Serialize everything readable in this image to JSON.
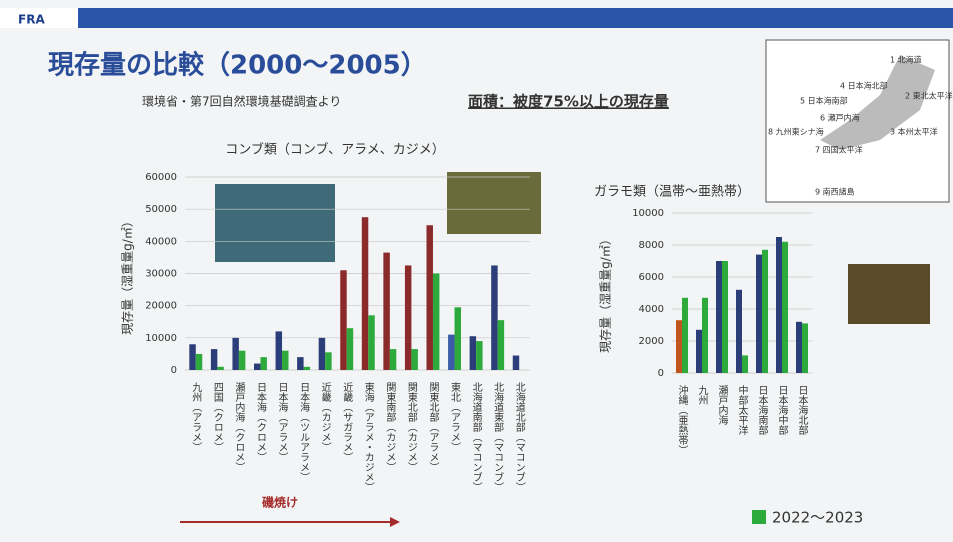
{
  "header": {
    "logo": "FRA"
  },
  "slide": {
    "title": "現存量の比較（2000〜2005）",
    "source": "環境省・第7回自然環境基礎調査より",
    "note": "面積：被度75%以上の現存量",
    "arrow_label": "磯焼け"
  },
  "map": {
    "labels": [
      "1 北海道",
      "2 東北太平洋",
      "3 本州太平洋",
      "4 日本海北部",
      "5 日本海南部",
      "6 瀬戸内海",
      "7 四国太平洋",
      "8 九州東シナ海",
      "9 南西諸島"
    ]
  },
  "chart_data": [
    {
      "type": "bar",
      "title": "コンブ類（コンブ、アラメ、カジメ）",
      "y_label": "現存量（湿重量g/㎡）",
      "categories": [
        "九州（アラメ）",
        "四国（クロメ）",
        "瀬戸内海（クロメ）",
        "日本海（クロメ）",
        "日本海（アラメ）",
        "日本海（ツルアラメ）",
        "近畿（カジメ）",
        "近畿（サガラメ）",
        "東海（アラメ・カジメ）",
        "関東南部（カジメ）",
        "関東北部（カジメ）",
        "関東北部（アラメ）",
        "東北（アラメ）",
        "北海道南部（マコンブ）",
        "北海道東部（マコンブ）",
        "北海道北部（マコンブ）"
      ],
      "series": [
        {
          "colors": [
            "#2c3e7a",
            "#2c3e7a",
            "#2c3e7a",
            "#2c3e7a",
            "#2c3e7a",
            "#2c3e7a",
            "#2c3e7a",
            "#8b2a2a",
            "#8b2a2a",
            "#8b2a2a",
            "#8b2a2a",
            "#8b2a2a",
            "#3a5ca8",
            "#2c3e7a",
            "#2c3e7a",
            "#2c3e7a"
          ],
          "values": [
            8000,
            6500,
            10000,
            2000,
            12000,
            4000,
            10000,
            31000,
            47500,
            36500,
            32500,
            45000,
            11000,
            10500,
            32500,
            4500
          ]
        },
        {
          "color": "#2eaa3c",
          "values": [
            5000,
            1000,
            6000,
            4000,
            6000,
            1000,
            5500,
            13000,
            17000,
            6500,
            6500,
            30000,
            19500,
            9000,
            15500,
            null
          ]
        }
      ],
      "ylim": [
        0,
        60000
      ],
      "yticks": [
        0,
        10000,
        20000,
        30000,
        40000,
        50000,
        60000
      ],
      "grid": true
    },
    {
      "type": "bar",
      "title": "ガラモ類（温帯〜亜熱帯）",
      "y_label": "現存量（湿重量g/㎡）",
      "categories": [
        "沖縄（亜熱帯）",
        "九州",
        "瀬戸内海",
        "中部太平洋",
        "日本海南部",
        "日本海中部",
        "日本海北部"
      ],
      "series": [
        {
          "colors": [
            "#c0561e",
            "#2c3e7a",
            "#2c3e7a",
            "#2c3e7a",
            "#2c3e7a",
            "#2c3e7a",
            "#2c3e7a"
          ],
          "values": [
            3300,
            2700,
            7000,
            5200,
            7400,
            8500,
            3200
          ]
        },
        {
          "name": "2022〜2023",
          "color": "#2eaa3c",
          "values": [
            4700,
            4700,
            7000,
            1100,
            7700,
            8200,
            3100
          ]
        }
      ],
      "ylim": [
        0,
        10000
      ],
      "yticks": [
        0,
        2000,
        4000,
        6000,
        8000,
        10000
      ],
      "grid": true
    }
  ]
}
